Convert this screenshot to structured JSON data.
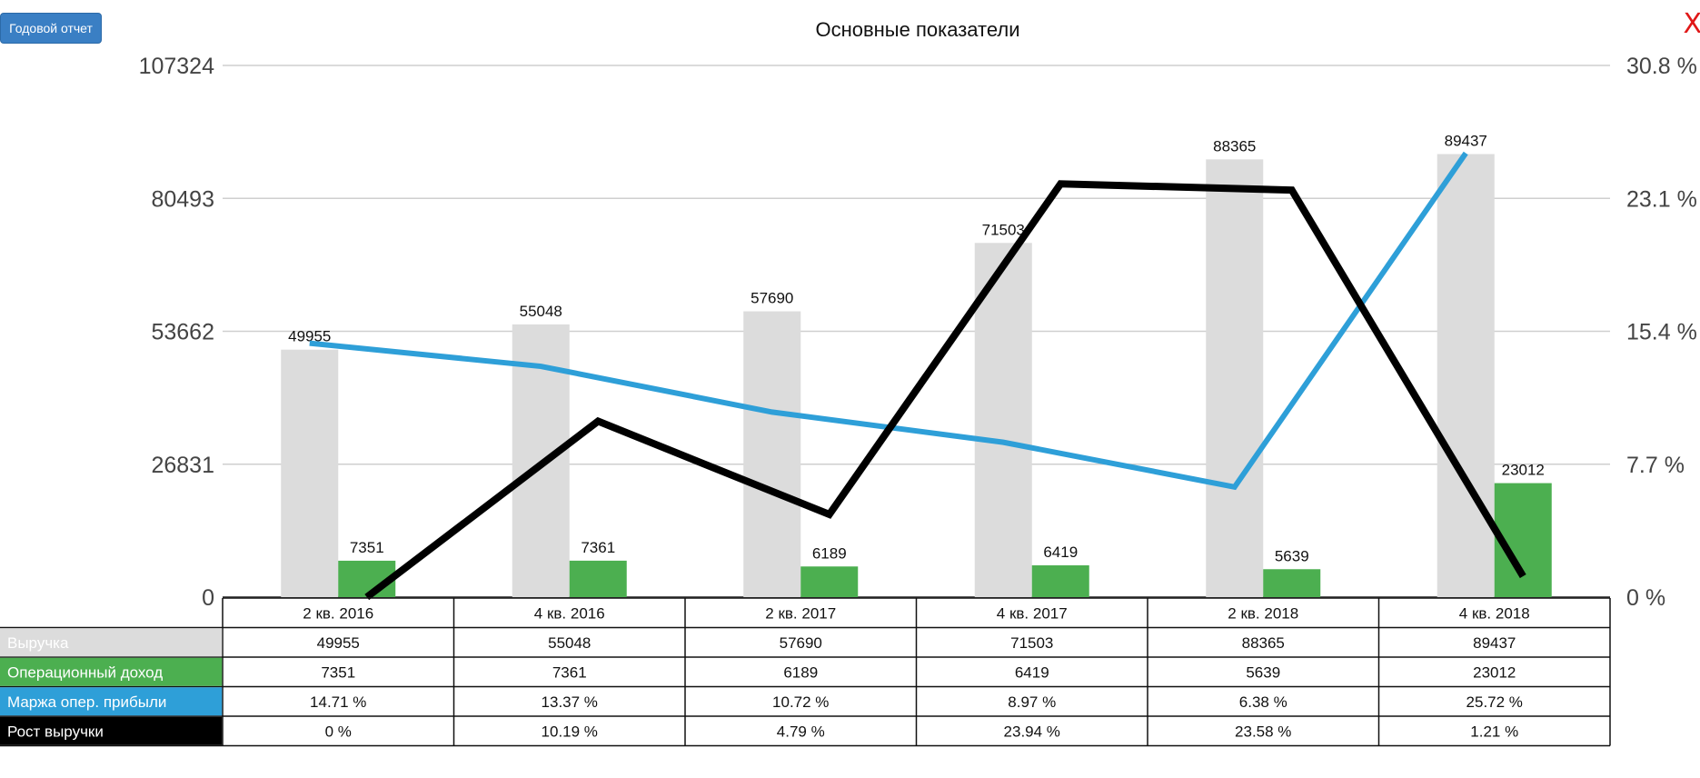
{
  "toolbar": {
    "report_label": "Годовой отчет",
    "close_label": "X"
  },
  "colors": {
    "revenue": "#dcdcdc",
    "operating_income": "#4caf50",
    "margin": "#2e9fd8",
    "growth": "#000000",
    "grid": "#cfcfcf"
  },
  "chart_data": {
    "type": "bar",
    "title": "Основные показатели",
    "categories": [
      "2 кв. 2016",
      "4 кв. 2016",
      "2 кв. 2017",
      "4 кв. 2017",
      "2 кв. 2018",
      "4 кв. 2018"
    ],
    "y_left": {
      "ticks": [
        "0",
        "26831",
        "53662",
        "80493",
        "107324"
      ],
      "range": [
        0,
        107324
      ]
    },
    "y_right": {
      "ticks": [
        "0 %",
        "7.7 %",
        "15.4 %",
        "23.1 %",
        "30.8 %"
      ],
      "range": [
        0,
        30.8
      ]
    },
    "grid": true,
    "series": [
      {
        "name": "Выручка",
        "type": "bar",
        "axis": "left",
        "values": [
          49955,
          55048,
          57690,
          71503,
          88365,
          89437
        ],
        "labels": [
          "49955",
          "55048",
          "57690",
          "71503",
          "88365",
          "89437"
        ]
      },
      {
        "name": "Операционный доход",
        "type": "bar",
        "axis": "left",
        "values": [
          7351,
          7361,
          6189,
          6419,
          5639,
          23012
        ],
        "labels": [
          "7351",
          "7361",
          "6189",
          "6419",
          "5639",
          "23012"
        ]
      },
      {
        "name": "Маржа опер. прибыли",
        "type": "line",
        "axis": "right",
        "values": [
          14.71,
          13.37,
          10.72,
          8.97,
          6.38,
          25.72
        ],
        "labels": [
          "14.71 %",
          "13.37 %",
          "10.72 %",
          "8.97 %",
          "6.38 %",
          "25.72 %"
        ]
      },
      {
        "name": "Рост выручки",
        "type": "line",
        "axis": "right",
        "values": [
          0,
          10.19,
          4.79,
          23.94,
          23.58,
          1.21
        ],
        "labels": [
          "0 %",
          "10.19 %",
          "4.79 %",
          "23.94 %",
          "23.58 %",
          "1.21 %"
        ]
      }
    ]
  }
}
